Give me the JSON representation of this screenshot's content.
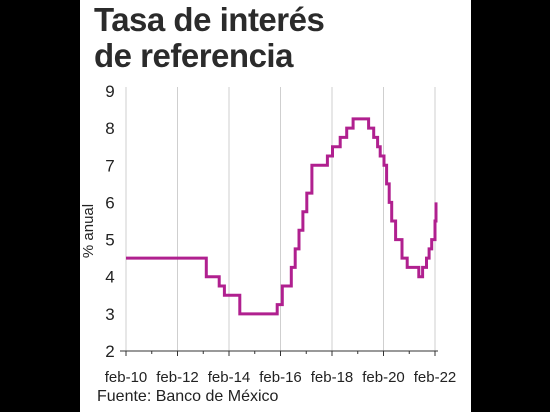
{
  "title_lines": [
    "Tasa de interés",
    "de referencia"
  ],
  "source": "Fuente: Banco de México",
  "chart_data": {
    "type": "line",
    "title": "Tasa de interés de referencia",
    "ylabel": "% anual",
    "xlabel": "",
    "ylim": [
      2,
      9
    ],
    "yticks": [
      2,
      3,
      4,
      5,
      6,
      7,
      8,
      9
    ],
    "xlim": [
      2010.0,
      2022.2
    ],
    "xticks": [
      {
        "value": 2010.08,
        "label": "feb-10"
      },
      {
        "value": 2012.08,
        "label": "feb-12"
      },
      {
        "value": 2014.08,
        "label": "feb-14"
      },
      {
        "value": 2016.08,
        "label": "feb-16"
      },
      {
        "value": 2018.08,
        "label": "feb-18"
      },
      {
        "value": 2020.08,
        "label": "feb-20"
      },
      {
        "value": 2022.08,
        "label": "feb-22"
      }
    ],
    "grid": "vertical",
    "line_color": "#b0208f",
    "step": true,
    "series": [
      {
        "x": [
          2010.08,
          2013.2,
          2013.7,
          2013.9,
          2014.5,
          2015.95,
          2016.15,
          2016.5,
          2016.65,
          2016.8,
          2016.95,
          2017.1,
          2017.3,
          2017.9,
          2018.1,
          2018.4,
          2018.65,
          2018.9,
          2019.5,
          2019.7,
          2019.85,
          2019.95,
          2020.1,
          2020.2,
          2020.3,
          2020.4,
          2020.55,
          2020.8,
          2021.0,
          2021.45,
          2021.6,
          2021.75,
          2021.85,
          2021.95,
          2022.08
        ],
        "values": [
          4.5,
          4.0,
          3.75,
          3.5,
          3.0,
          3.25,
          3.75,
          4.25,
          4.75,
          5.25,
          5.75,
          6.25,
          7.0,
          7.25,
          7.5,
          7.75,
          8.0,
          8.25,
          8.0,
          7.75,
          7.5,
          7.25,
          7.0,
          6.5,
          6.0,
          5.5,
          5.0,
          4.5,
          4.25,
          4.0,
          4.25,
          4.5,
          4.75,
          5.0,
          5.5
        ]
      }
    ],
    "last_point": {
      "x": 2022.12,
      "value": 6.0
    }
  }
}
